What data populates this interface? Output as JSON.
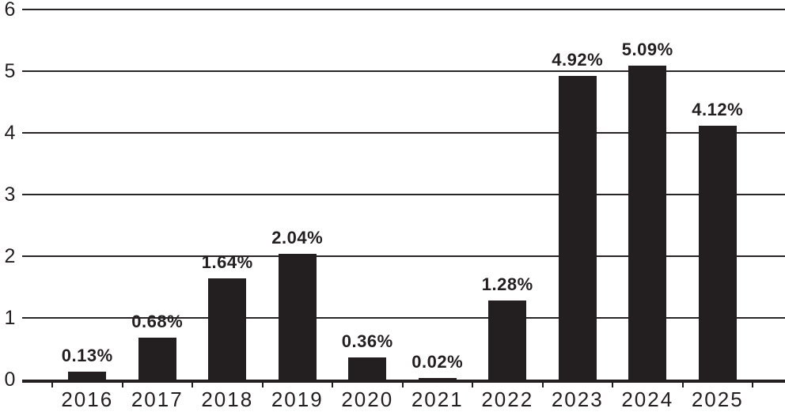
{
  "chart_data": {
    "type": "bar",
    "title": "",
    "xlabel": "",
    "ylabel": "",
    "categories": [
      "2016",
      "2017",
      "2018",
      "2019",
      "2020",
      "2021",
      "2022",
      "2023",
      "2024",
      "2025"
    ],
    "values": [
      0.13,
      0.68,
      1.64,
      2.04,
      0.36,
      0.02,
      1.28,
      4.92,
      5.09,
      4.12
    ],
    "value_labels": [
      "0.13%",
      "0.68%",
      "1.64%",
      "2.04%",
      "0.36%",
      "0.02%",
      "1.28%",
      "4.92%",
      "5.09%",
      "4.12%"
    ],
    "ytick_labels": [
      "0",
      "1",
      "2",
      "3",
      "4",
      "5",
      "6"
    ],
    "yticks": [
      0,
      1,
      2,
      3,
      4,
      5,
      6
    ],
    "ylim": [
      0,
      6
    ],
    "grid": "horizontal-on",
    "legend": "none",
    "colors": {
      "bar": "#231f20",
      "gridline": "#2a2627",
      "axis": "#231f20",
      "text": "#231f20",
      "background": "#ffffff"
    }
  }
}
